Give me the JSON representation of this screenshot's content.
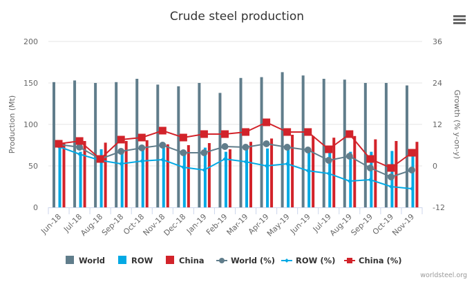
{
  "chart_data": {
    "type": "bar",
    "title": "Crude steel production",
    "categories": [
      "Jun-18",
      "Jul-18",
      "Aug-18",
      "Sep-18",
      "Oct-18",
      "Nov-18",
      "Dec-18",
      "Jan-19",
      "Feb-19",
      "Mar-19",
      "Apr-19",
      "May-19",
      "Jun-19",
      "Jul-19",
      "Aug-19",
      "Sep-19",
      "Oct-19",
      "Nov-19"
    ],
    "ylabel": "Production (Mt)",
    "ylim": [
      0,
      200
    ],
    "yticks": [
      "0",
      "50",
      "100",
      "150",
      "200"
    ],
    "ylabel_right": "Growth (% y-on-y)",
    "ylim_right": [
      -12,
      36
    ],
    "yticks_right": [
      "-12",
      "0",
      "12",
      "24",
      "36"
    ],
    "grid": true,
    "legend_position": "bottom",
    "series": [
      {
        "name": "World",
        "type": "bar",
        "axis": "left",
        "color": "#607d8b",
        "values": [
          151,
          153,
          150,
          151,
          155,
          148,
          146,
          150,
          138,
          156,
          157,
          163,
          159,
          155,
          154,
          150,
          150,
          147
        ]
      },
      {
        "name": "ROW",
        "type": "bar",
        "axis": "left",
        "color": "#03a9e4",
        "values": [
          73,
          67,
          70,
          67,
          69,
          72,
          65,
          72,
          67,
          71,
          71,
          71,
          67,
          68,
          67,
          67,
          68,
          64
        ]
      },
      {
        "name": "China",
        "type": "bar",
        "axis": "left",
        "color": "#d2232a",
        "values": [
          77,
          80,
          78,
          80,
          81,
          76,
          75,
          77.5,
          70,
          79,
          83,
          87.5,
          86,
          84,
          86,
          82,
          80,
          79
        ]
      },
      {
        "name": "World (%)",
        "type": "line",
        "axis": "right",
        "color": "#607d8b",
        "marker": "circle",
        "values": [
          6.2,
          5.4,
          2.0,
          4.2,
          5.2,
          6.0,
          3.8,
          3.8,
          5.6,
          5.4,
          6.4,
          5.4,
          4.6,
          1.6,
          2.8,
          -0.6,
          -3.2,
          -1.2
        ]
      },
      {
        "name": "ROW (%)",
        "type": "line",
        "axis": "right",
        "color": "#03a9e4",
        "marker": "diamond",
        "values": [
          5.6,
          3.4,
          1.6,
          0.6,
          1.4,
          1.8,
          -0.4,
          -1.2,
          2.0,
          1.2,
          0.0,
          0.6,
          -1.4,
          -2.2,
          -4.4,
          -4.0,
          -6.0,
          -6.6
        ]
      },
      {
        "name": "China (%)",
        "type": "line",
        "axis": "right",
        "color": "#d2232a",
        "marker": "square",
        "values": [
          6.4,
          7.2,
          2.0,
          7.6,
          8.2,
          10.2,
          8.2,
          9.2,
          9.2,
          9.8,
          12.6,
          9.8,
          9.8,
          4.8,
          9.2,
          2.0,
          -0.6,
          3.8
        ]
      }
    ]
  },
  "credit": "worldsteel.org",
  "menu_icon": "hamburger-menu-icon"
}
